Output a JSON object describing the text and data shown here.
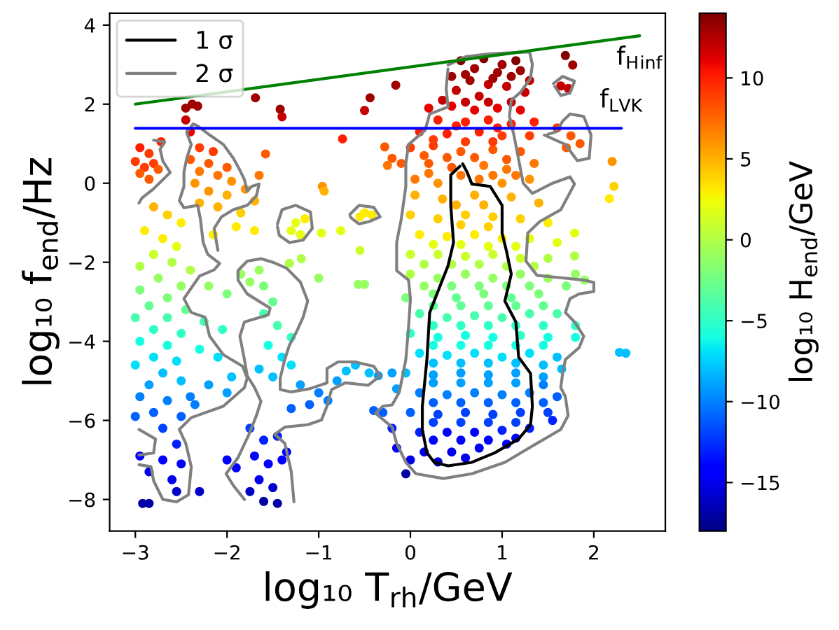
{
  "chart_data": {
    "type": "scatter",
    "xlabel": "log₁₀ T$_{rh}$/GeV",
    "ylabel": "log₁₀ f$_{end}$/Hz",
    "clabel": "log₁₀ H$_{end}$/GeV",
    "xlim": [
      -3.28,
      2.78
    ],
    "ylim": [
      -8.8,
      4.3
    ],
    "xticks": [
      -3,
      -2,
      -1,
      0,
      1,
      2
    ],
    "yticks": [
      -8,
      -6,
      -4,
      -2,
      0,
      2,
      4
    ],
    "clim": [
      -18,
      14
    ],
    "cticks": [
      -15,
      -10,
      -5,
      0,
      5,
      10
    ],
    "legend": "top left",
    "series": [
      {
        "marker": "circle",
        "x": [
          0.55,
          0.8,
          1.0,
          1.15,
          0.7,
          0.95,
          1.2,
          0.45,
          0.65,
          1.3,
          0.85,
          1.05,
          0.5,
          1.25,
          0.75,
          -0.16,
          1.69,
          1.77,
          1.64,
          1.72,
          0.2,
          0.45,
          0.7,
          0.95,
          1.2,
          0.3,
          0.6,
          0.85,
          1.1,
          1.35,
          0.1,
          0.4,
          0.75,
          1.0,
          1.3,
          1.6,
          1.75,
          1.85,
          1.7,
          0.0,
          0.25,
          0.55,
          0.9,
          1.2,
          -0.1,
          0.2,
          0.45,
          0.8,
          1.05,
          1.35,
          0.05,
          0.3,
          0.75,
          1.0,
          1.3,
          -0.28,
          -0.2,
          -0.25,
          2.2,
          2.22,
          2.17,
          0.05,
          0.35,
          0.7,
          1.1,
          1.4,
          0.0,
          0.3,
          0.6,
          0.9,
          1.2,
          1.5,
          0.1,
          0.4,
          0.7,
          1.0,
          1.3,
          1.6,
          0.0,
          0.3,
          0.6,
          0.9,
          1.2,
          1.5,
          1.79,
          1.79,
          0.0,
          0.3,
          0.6,
          0.9,
          1.2,
          1.5,
          1.8,
          -0.05,
          0.25,
          0.5,
          0.8,
          1.1,
          1.4,
          1.7,
          1.9,
          0.1,
          0.4,
          0.7,
          1.0,
          1.3,
          1.6,
          1.8,
          0.0,
          0.3,
          0.6,
          0.9,
          1.2,
          1.5,
          1.8,
          0.1,
          0.4,
          0.7,
          1.0,
          1.3,
          1.6,
          -0.05,
          0.25,
          0.55,
          0.85,
          1.15,
          1.45,
          1.65,
          -0.15,
          0.1,
          0.4,
          0.7,
          1.0,
          1.3,
          1.6,
          -0.3,
          0.0,
          0.3,
          0.6,
          0.9,
          1.2,
          1.5,
          2.28,
          2.35,
          -0.2,
          0.1,
          0.4,
          0.7,
          1.0,
          1.3,
          1.55,
          -0.15,
          0.15,
          0.45,
          0.75,
          1.05,
          0.0,
          0.3,
          0.6,
          -0.05,
          -0.35,
          -0.2,
          -1.2,
          -1.0,
          -0.8,
          -0.6,
          -0.45,
          -0.4,
          -1.1,
          -0.9,
          -1.3,
          -0.7,
          -2.95,
          -2.85,
          -3.0,
          -2.9,
          -2.8,
          -2.95,
          -2.85,
          -2.75,
          -2.72,
          -2.8,
          -2.65,
          -2.5,
          -2.9,
          -2.7,
          -2.55,
          -2.8,
          -2.6,
          -2.95,
          -2.4,
          -2.75,
          -2.5,
          -2.95,
          -2.65,
          -2.85,
          -2.45,
          -2.65,
          -3.0,
          -2.8,
          -2.5,
          -2.95,
          -2.65,
          -2.8,
          -2.55,
          -3.0,
          -2.7,
          -2.85,
          -2.5,
          -2.95,
          -2.65,
          -2.4,
          -2.8,
          -3.0,
          -2.5,
          -2.7,
          -2.55,
          -2.95,
          -2.7,
          -2.5,
          -2.85,
          -2.6,
          -2.55,
          -2.3,
          -2.92,
          -2.85,
          -2.3,
          -2.15,
          -2.4,
          -2.2,
          -2.0,
          -2.3,
          -2.1,
          -1.95,
          -2.35,
          -2.2,
          -2.0,
          -1.8,
          -1.7,
          -2.3,
          -2.1,
          -1.85,
          -1.9,
          -2.15,
          -1.7,
          -2.2,
          -2.0,
          -2.25,
          -2.05,
          -2.3,
          -2.1,
          -1.95,
          -2.2,
          -2.0,
          -2.35,
          -2.45,
          -2.38,
          -2.32,
          -2.45,
          -2.4,
          -1.69,
          -1.42,
          -1.4,
          -0.74,
          -0.44,
          -0.5,
          -1.58,
          -1.65,
          -0.96,
          -0.94,
          -1.85,
          -1.65,
          -1.6,
          -1.75,
          -1.5,
          -1.6,
          -1.45,
          -1.3,
          -1.55,
          -1.4,
          -1.65,
          -1.5,
          -1.3,
          -1.0,
          -0.57,
          -0.5,
          -1.75,
          -1.6,
          -1.45,
          -1.7,
          -1.55,
          -1.4,
          -1.9,
          -1.65,
          -1.5,
          -1.75,
          -1.45,
          -1.6,
          -1.35,
          -2.0,
          -1.25,
          -1.3,
          -1.15,
          -1.2,
          -0.5,
          -0.42,
          -0.55,
          -0.97,
          -0.76,
          -0.55,
          -1.32,
          -1.19,
          0.5,
          0.8,
          0.55,
          0.85,
          0.55,
          0.85,
          0.25,
          1.15,
          0.45,
          0.75,
          1.05,
          0.15,
          1.35,
          0.45,
          0.75,
          1.05,
          0.15,
          1.3,
          0.25,
          0.55,
          0.85,
          1.15,
          1.45,
          0.25,
          0.55,
          0.85,
          1.15,
          1.45,
          0.25,
          0.55,
          0.85,
          1.15,
          1.45,
          0.25,
          0.55,
          0.85,
          1.15,
          1.45,
          0.25,
          0.55,
          0.85,
          1.15,
          1.45,
          0.25,
          0.55,
          0.85,
          1.15,
          1.45,
          0.25,
          0.55,
          0.85,
          1.15,
          0.25,
          0.55,
          0.85,
          1.15,
          0.6,
          0.9,
          1.1,
          0.6,
          0.85,
          1.1,
          0.35,
          0.5,
          0.95,
          0.25,
          0.6,
          0.9,
          0.15,
          0.4,
          0.7,
          1.05,
          0.2,
          0.55,
          0.9,
          1.15
        ],
        "values": [
          3.1,
          3.15,
          3.0,
          3.1,
          2.9,
          2.8,
          2.85,
          2.7,
          2.6,
          2.6,
          2.5,
          2.45,
          2.35,
          2.3,
          2.2,
          2.48,
          3.23,
          2.99,
          2.46,
          2.4,
          1.9,
          1.95,
          1.85,
          1.9,
          1.85,
          1.6,
          1.55,
          1.6,
          1.5,
          1.55,
          1.3,
          1.25,
          1.3,
          1.2,
          1.2,
          1.4,
          1.2,
          1.0,
          0.9,
          0.9,
          0.95,
          0.8,
          0.85,
          0.8,
          0.5,
          0.5,
          0.4,
          0.45,
          0.35,
          0.5,
          0.1,
          0.0,
          0.1,
          0.0,
          0.1,
          0.92,
          0.63,
          0.45,
          0.55,
          -0.08,
          -0.39,
          -0.3,
          -0.4,
          -0.3,
          -0.35,
          -0.5,
          -0.8,
          -0.9,
          -0.8,
          -0.85,
          -0.9,
          -1.0,
          -1.3,
          -1.35,
          -1.3,
          -1.4,
          -1.4,
          -1.5,
          -1.8,
          -1.8,
          -1.85,
          -1.8,
          -1.9,
          -1.9,
          -1.26,
          -1.84,
          -2.3,
          -2.4,
          -2.3,
          -2.4,
          -2.3,
          -2.4,
          -2.3,
          -2.9,
          -2.8,
          -2.9,
          -2.8,
          -2.9,
          -2.8,
          -2.6,
          -2.45,
          -3.3,
          -3.4,
          -3.35,
          -3.4,
          -3.3,
          -3.3,
          -3.6,
          -3.8,
          -3.9,
          -3.85,
          -3.9,
          -3.85,
          -3.9,
          -3.9,
          -4.3,
          -4.35,
          -4.3,
          -4.4,
          -4.3,
          -4.4,
          -4.8,
          -4.85,
          -4.8,
          -4.85,
          -4.8,
          -4.9,
          -4.7,
          -5.2,
          -5.3,
          -5.35,
          -5.3,
          -5.35,
          -5.3,
          -5.4,
          -5.8,
          -5.8,
          -5.85,
          -5.8,
          -5.85,
          -5.8,
          -5.8,
          -4.28,
          -4.3,
          -6.2,
          -6.3,
          -6.3,
          -6.3,
          -6.25,
          -6.2,
          -6.0,
          -6.7,
          -6.8,
          -6.8,
          -6.7,
          -6.6,
          -7.0,
          -7.05,
          -6.95,
          -7.35,
          -4.87,
          -4.8,
          -5.1,
          -5.3,
          -5.0,
          -4.6,
          -4.8,
          -5.75,
          -5.6,
          -5.5,
          -5.7,
          -4.75,
          0.9,
          0.75,
          0.55,
          0.4,
          0.5,
          0.25,
          0.1,
          0.35,
          1.05,
          -0.6,
          -0.8,
          -1.0,
          -1.2,
          -1.4,
          -1.6,
          -1.8,
          -2.0,
          -2.1,
          -2.2,
          -2.4,
          -2.6,
          -2.7,
          -2.9,
          -3.1,
          -3.2,
          -3.4,
          -3.4,
          -3.7,
          -3.8,
          -4.0,
          -4.1,
          -4.4,
          -4.5,
          -4.6,
          -4.8,
          -5.1,
          -5.0,
          -5.4,
          -5.5,
          -5.4,
          -5.8,
          -5.9,
          -5.9,
          -6.2,
          -6.6,
          -6.9,
          -7.0,
          -7.1,
          -7.3,
          -7.5,
          -7.8,
          -7.8,
          -8.1,
          -8.1,
          0.9,
          0.8,
          0.6,
          0.5,
          0.4,
          0.3,
          0.2,
          0.05,
          0.0,
          -0.2,
          -0.3,
          -0.15,
          -0.45,
          -0.5,
          -0.6,
          -0.75,
          -1.1,
          -1.3,
          -1.2,
          -2.6,
          -2.8,
          -3.5,
          -3.7,
          -4.2,
          -4.4,
          -4.9,
          -5.1,
          -5.3,
          -5.6,
          1.9,
          2.0,
          1.95,
          1.6,
          1.3,
          2.16,
          1.87,
          1.68,
          1.12,
          2.16,
          1.84,
          0.74,
          0.2,
          -0.08,
          -0.2,
          -2.3,
          -2.2,
          -2.6,
          -2.5,
          -3.0,
          -3.3,
          -3.6,
          -3.9,
          -4.1,
          -4.4,
          -4.7,
          -4.9,
          -4.6,
          -2.4,
          -2.56,
          -2.56,
          -6.2,
          -6.5,
          -6.4,
          -6.9,
          -7.1,
          -7.0,
          -7.2,
          -7.5,
          -7.7,
          -7.8,
          -8.1,
          -8.05,
          -6.8,
          -7.0,
          -1.0,
          -1.2,
          -0.9,
          -1.3,
          -0.75,
          -0.8,
          -0.85,
          -1.26,
          -1.2,
          -1.7,
          -2.03,
          -1.91,
          -0.55,
          -0.55,
          -1.05,
          -1.1,
          -1.55,
          -1.6,
          -1.55,
          -1.6,
          -2.05,
          -2.05,
          -2.1,
          -2.05,
          -2.1,
          -2.6,
          -2.6,
          -2.6,
          -2.6,
          -2.6,
          -3.1,
          -3.1,
          -3.1,
          -3.1,
          -3.1,
          -3.6,
          -3.6,
          -3.6,
          -3.6,
          -3.6,
          -4.1,
          -4.1,
          -4.1,
          -4.1,
          -4.1,
          -4.55,
          -4.55,
          -4.55,
          -4.55,
          -4.6,
          -5.05,
          -5.05,
          -5.05,
          -5.05,
          -5.1,
          -5.55,
          -5.55,
          -5.55,
          -5.55,
          -5.55,
          -6.05,
          -6.05,
          -6.05,
          -6.05,
          -6.5,
          -6.5,
          -6.5,
          -6.45,
          2.75,
          2.65,
          2.7,
          2.05,
          2.05,
          2.05,
          2.1,
          1.45,
          1.4,
          1.1,
          1.05,
          1.05,
          0.7,
          0.65,
          0.65,
          0.6,
          0.25,
          0.2,
          0.2,
          0.2
        ],
        "colors": [
          "#800000",
          "#800000",
          "#9f0000",
          "#800000",
          "#9f0000",
          "#9f0000",
          "#9f0000",
          "#9f0000",
          "#9f0000",
          "#c40000",
          "#c40000",
          "#c40000",
          "#c40000",
          "#c40000",
          "#c40000",
          "#9f0000",
          "#800000",
          "#9f0000",
          "#c40000",
          "#c40000",
          "#e80000",
          "#e80000",
          "#e80000",
          "#e80000",
          "#e80000",
          "#ff1e00",
          "#ff1e00",
          "#ff1e00",
          "#ff1e00",
          "#ff1e00",
          "#ff1e00",
          "#ff1e00",
          "#ff1e00",
          "#ff3b00",
          "#ff3b00",
          "#ff3b00",
          "#ff5900",
          "#ff5900",
          "#ff5900",
          "#ff3b00",
          "#ff3b00",
          "#ff5900",
          "#ff5900",
          "#ff5900",
          "#ff5900",
          "#ff5900",
          "#ff5900",
          "#ff7700",
          "#ff7700",
          "#ff7700",
          "#ff7700",
          "#ff9400",
          "#ff7700",
          "#ff9400",
          "#ff9400",
          "#ff5900",
          "#ff5900",
          "#ff7700",
          "#ff9400",
          "#ffd000",
          "#feed00",
          "#ffb200",
          "#ffb200",
          "#ffb200",
          "#ffb200",
          "#ffb200",
          "#ffd000",
          "#ffd000",
          "#ffd000",
          "#ffd000",
          "#ffd000",
          "#feed00",
          "#feed00",
          "#feed00",
          "#feed00",
          "#feed00",
          "#e4ff12",
          "#e4ff12",
          "#caff2c",
          "#caff2c",
          "#caff2c",
          "#caff2c",
          "#caff2c",
          "#b1ff46",
          "#e4ff12",
          "#b1ff46",
          "#b1ff46",
          "#97ff60",
          "#97ff60",
          "#97ff60",
          "#97ff60",
          "#97ff60",
          "#97ff60",
          "#7dff7a",
          "#7dff7a",
          "#63ff94",
          "#7dff7a",
          "#63ff94",
          "#7dff7a",
          "#7dff7a",
          "#97ff60",
          "#49ffad",
          "#49ffad",
          "#49ffad",
          "#49ffad",
          "#49ffad",
          "#49ffad",
          "#30ffc7",
          "#30ffc7",
          "#16ffe1",
          "#16ffe1",
          "#16ffe1",
          "#30ffc7",
          "#16ffe1",
          "#16ffe1",
          "#00e0fb",
          "#00e0fb",
          "#00e0fb",
          "#00e0fb",
          "#00e0fb",
          "#00c0ff",
          "#00c0ff",
          "#00a0ff",
          "#00a0ff",
          "#00a0ff",
          "#00a0ff",
          "#00a0ff",
          "#00c0ff",
          "#00a0ff",
          "#0080ff",
          "#0080ff",
          "#0080ff",
          "#0080ff",
          "#0080ff",
          "#0060ff",
          "#0060ff",
          "#0060ff",
          "#0040ff",
          "#0040ff",
          "#0040ff",
          "#0040ff",
          "#0040ff",
          "#00c0ff",
          "#00c0ff",
          "#0020ff",
          "#0020ff",
          "#0000ff",
          "#0000ff",
          "#0020ff",
          "#0020ff",
          "#0020ff",
          "#0000ff",
          "#0000ed",
          "#0000ed",
          "#0000ed",
          "#0000ff",
          "#0000ed",
          "#0000c8",
          "#0000ed",
          "#0000a4",
          "#00a0ff",
          "#00a0ff",
          "#00a0ff",
          "#0080ff",
          "#00a0ff",
          "#00c0ff",
          "#00c0ff",
          "#0060ff",
          "#0060ff",
          "#0080ff",
          "#0060ff",
          "#00c0ff",
          "#ff1e00",
          "#ff3b00",
          "#ff3b00",
          "#ff3b00",
          "#ff3b00",
          "#ff5900",
          "#ff5900",
          "#ff5900",
          "#ff1e00",
          "#ffb200",
          "#ffd000",
          "#feed00",
          "#feed00",
          "#feed00",
          "#e4ff12",
          "#caff2c",
          "#b1ff46",
          "#b1ff46",
          "#b1ff46",
          "#97ff60",
          "#97ff60",
          "#7dff7a",
          "#7dff7a",
          "#63ff94",
          "#63ff94",
          "#49ffad",
          "#49ffad",
          "#30ffc7",
          "#30ffc7",
          "#16ffe1",
          "#16ffe1",
          "#00e0fb",
          "#00e0fb",
          "#00e0fb",
          "#00c0ff",
          "#00a0ff",
          "#00c0ff",
          "#0080ff",
          "#0080ff",
          "#0080ff",
          "#0060ff",
          "#0060ff",
          "#0060ff",
          "#0040ff",
          "#0020ff",
          "#0000ff",
          "#0000ff",
          "#0000ff",
          "#0000ed",
          "#0000ed",
          "#0000c8",
          "#0000c8",
          "#0000a4",
          "#0000a4",
          "#ff3b00",
          "#ff3b00",
          "#ff5900",
          "#ff5900",
          "#ff5900",
          "#ff7700",
          "#ff7700",
          "#ff9400",
          "#ff9400",
          "#ff9400",
          "#ffb200",
          "#ff9400",
          "#ffb200",
          "#ffb200",
          "#ffb200",
          "#ffd000",
          "#feed00",
          "#feed00",
          "#feed00",
          "#97ff60",
          "#7dff7a",
          "#49ffad",
          "#30ffc7",
          "#16ffe1",
          "#00e0fb",
          "#00c0ff",
          "#00a0ff",
          "#00a0ff",
          "#0080ff",
          "#9f0000",
          "#9f0000",
          "#9f0000",
          "#c40000",
          "#e80000",
          "#9f0000",
          "#9f0000",
          "#c40000",
          "#ff1e00",
          "#9f0000",
          "#c40000",
          "#ff5900",
          "#ff7700",
          "#ff9400",
          "#ffb200",
          "#97ff60",
          "#97ff60",
          "#7dff7a",
          "#97ff60",
          "#63ff94",
          "#49ffad",
          "#49ffad",
          "#30ffc7",
          "#16ffe1",
          "#00e0fb",
          "#00c0ff",
          "#00c0ff",
          "#00e0fb",
          "#97ff60",
          "#97ff60",
          "#97ff60",
          "#0040ff",
          "#0020ff",
          "#0020ff",
          "#0000ff",
          "#0000ff",
          "#0000ff",
          "#0000ff",
          "#0000ed",
          "#0000c8",
          "#0000c8",
          "#0000a4",
          "#0000a4",
          "#0000ff",
          "#0000ff",
          "#e4ff12",
          "#e4ff12",
          "#feed00",
          "#e4ff12",
          "#feed00",
          "#feed00",
          "#feed00",
          "#e4ff12",
          "#e4ff12",
          "#caff2c",
          "#b1ff46",
          "#b1ff46",
          "#ffb200",
          "#ffb200",
          "#ffd000",
          "#ffd000",
          "#e4ff12",
          "#e4ff12",
          "#e4ff12",
          "#e4ff12",
          "#b1ff46",
          "#b1ff46",
          "#b1ff46",
          "#b1ff46",
          "#b1ff46",
          "#7dff7a",
          "#7dff7a",
          "#7dff7a",
          "#97ff60",
          "#7dff7a",
          "#63ff94",
          "#63ff94",
          "#63ff94",
          "#63ff94",
          "#63ff94",
          "#30ffc7",
          "#30ffc7",
          "#30ffc7",
          "#30ffc7",
          "#30ffc7",
          "#16ffe1",
          "#16ffe1",
          "#16ffe1",
          "#16ffe1",
          "#16ffe1",
          "#00c0ff",
          "#00c0ff",
          "#00c0ff",
          "#00c0ff",
          "#00c0ff",
          "#00a0ff",
          "#00a0ff",
          "#00a0ff",
          "#00a0ff",
          "#0080ff",
          "#0060ff",
          "#0060ff",
          "#0060ff",
          "#0060ff",
          "#0060ff",
          "#0040ff",
          "#0040ff",
          "#0040ff",
          "#0040ff",
          "#0000ff",
          "#0000ff",
          "#0000ff",
          "#0000ff",
          "#9f0000",
          "#9f0000",
          "#9f0000",
          "#c40000",
          "#c40000",
          "#c40000",
          "#c40000",
          "#ff1e00",
          "#ff1e00",
          "#ff3b00",
          "#ff3b00",
          "#ff3b00",
          "#ff5900",
          "#ff5900",
          "#ff5900",
          "#ff5900",
          "#ff7700",
          "#ff7700",
          "#ff7700",
          "#ff7700"
        ]
      },
      {
        "type": "line",
        "name": "1 σ",
        "color": "#000000",
        "x": [
          0.57,
          0.62,
          0.67,
          0.87,
          1.0,
          1.0,
          1.05,
          1.1,
          1.03,
          1.15,
          1.18,
          1.31,
          1.33,
          1.31,
          1.18,
          0.92,
          0.67,
          0.41,
          0.26,
          0.18,
          0.13,
          0.13,
          0.18,
          0.21,
          0.31,
          0.41,
          0.47,
          0.44,
          0.44,
          0.54
        ],
        "values": [
          0.49,
          0.27,
          -0.02,
          -0.08,
          -0.56,
          -1.26,
          -1.74,
          -2.3,
          -2.98,
          -3.51,
          -4.4,
          -4.81,
          -5.64,
          -6.11,
          -6.47,
          -6.82,
          -7.06,
          -7.15,
          -7.06,
          -6.82,
          -6.23,
          -5.64,
          -4.46,
          -3.27,
          -2.68,
          -2.09,
          -1.5,
          -0.56,
          0.21,
          0.43
        ]
      },
      {
        "type": "line",
        "name": "2 σ",
        "color": "#808080",
        "x": [
          0.41,
          0.6,
          0.85,
          1.1,
          1.3,
          1.33,
          1.31,
          1.2,
          1.1,
          1.08,
          1.13,
          1.18,
          1.23,
          1.33,
          1.54,
          1.74,
          1.79,
          1.64,
          1.41,
          1.28,
          1.26,
          1.38,
          1.64,
          1.89,
          2.0,
          2.0,
          1.84,
          1.74,
          1.69,
          1.79,
          1.89,
          1.84,
          1.69,
          1.66,
          1.64,
          1.69,
          1.72,
          1.64,
          1.38,
          1.03,
          0.67,
          0.36,
          0.06,
          -0.05,
          -0.15,
          -0.2,
          -0.38,
          -0.3,
          -0.2,
          -0.12,
          -0.05,
          -0.02,
          0.0,
          -0.02,
          -0.15,
          -0.15,
          -0.1,
          -0.05,
          -0.05,
          -0.02,
          0.16,
          0.21,
          0.41,
          0.39,
          0.41,
          null,
          1.46,
          1.69,
          1.82,
          1.95,
          1.97,
          1.89,
          1.74,
          1.66,
          1.59,
          1.5,
          null,
          1.56,
          1.66,
          1.79,
          1.74,
          1.64,
          1.575,
          null,
          -2.1,
          -2.14,
          -2.06,
          -1.93,
          -1.78,
          -1.68,
          -1.65,
          -1.73,
          -1.78,
          -1.81,
          -1.86,
          -1.93,
          -2.04,
          -2.19,
          -2.32,
          -2.37,
          -2.44,
          -2.39,
          -2.44,
          -2.47,
          -2.47,
          -2.52,
          -2.47,
          -2.32,
          -2.29,
          -2.26,
          -2.21,
          -2.08,
          -2.14,
          -2.3,
          -2.47,
          -2.39,
          -2.24,
          -2.19,
          -2.04,
          -1.83,
          -1.78,
          -1.81,
          -2.04,
          -2.39,
          -2.52,
          -2.45,
          -2.39,
          -2.42,
          -2.55,
          -2.7,
          -2.8,
          -2.83,
          -2.96,
          null,
          -2.8,
          -2.68,
          -2.73,
          -2.7,
          -2.62,
          -2.7,
          -2.8,
          -2.93,
          -2.96,
          null,
          -2.96,
          -2.78,
          -2.8,
          -2.96,
          null,
          -1.81,
          -1.93,
          -2.01,
          -1.88,
          -1.76,
          -1.68,
          -1.63,
          -1.7,
          -1.78,
          -1.81,
          -1.86,
          -1.81,
          -1.55,
          -1.53,
          -1.78,
          -1.88,
          -1.88,
          -1.78,
          -1.63,
          -1.5,
          -1.35,
          -1.2,
          -1.12,
          -1.17,
          -1.24,
          -1.32,
          -1.37,
          -1.42,
          -1.42,
          -1.3,
          -1.1,
          -0.91,
          -0.91,
          -0.79,
          -0.61,
          -0.4,
          -0.33,
          -0.46,
          -0.71,
          -0.86,
          -0.91,
          -0.97,
          -1.12,
          -1.37,
          -1.48,
          -1.37,
          -1.3,
          -1.27,
          null,
          -1.45,
          -1.4,
          -1.25,
          -1.09,
          -1.07,
          -1.17,
          -1.32,
          -1.43,
          -1.45,
          null,
          -0.66,
          -0.56,
          -0.4,
          -0.33,
          -0.45,
          -0.56,
          -0.63,
          -0.655
        ],
        "values": [
          2.99,
          3.2,
          3.27,
          3.3,
          3.32,
          3.0,
          2.65,
          2.3,
          2.1,
          1.7,
          1.2,
          0.6,
          0.0,
          -0.26,
          -0.01,
          0.16,
          -0.02,
          -0.67,
          -0.97,
          -1.26,
          -1.97,
          -2.33,
          -2.39,
          -2.45,
          -2.51,
          -2.74,
          -2.8,
          -2.92,
          -3.27,
          -3.51,
          -3.87,
          -4.16,
          -4.46,
          -4.81,
          -5.17,
          -5.4,
          -5.88,
          -6.23,
          -6.58,
          -7.06,
          -7.35,
          -7.47,
          -7.35,
          -7.06,
          -6.58,
          -6.17,
          -5.82,
          -5.64,
          -5.61,
          -5.28,
          -4.46,
          -3.63,
          -2.92,
          -2.45,
          -2.21,
          -1.5,
          -0.91,
          -0.08,
          0.51,
          0.98,
          1.34,
          1.75,
          1.93,
          2.4,
          2.89,
          null,
          1.22,
          0.98,
          0.57,
          0.63,
          1.22,
          1.69,
          1.75,
          1.57,
          1.3,
          1.24,
          null,
          2.52,
          2.7,
          2.58,
          2.28,
          2.22,
          2.45,
          null,
          -1.7,
          -1.14,
          -0.85,
          -0.67,
          -0.56,
          -0.32,
          -0.02,
          -0.08,
          -0.2,
          0.09,
          0.33,
          0.63,
          0.98,
          1.22,
          1.45,
          1.5,
          1.28,
          0.98,
          0.63,
          0.27,
          -0.08,
          -0.44,
          -0.62,
          -0.56,
          -0.91,
          -1.5,
          -1.8,
          -2.03,
          -2.19,
          -2.35,
          -2.92,
          -3.27,
          -3.39,
          -3.87,
          -4.34,
          -4.63,
          -4.93,
          -5.17,
          -5.64,
          -5.93,
          -6.23,
          -6.58,
          -7.17,
          -7.88,
          -8.06,
          -8.0,
          -7.53,
          -7.17,
          -7.12,
          null,
          1.09,
          1.04,
          0.86,
          0.56,
          0.27,
          0.09,
          -0.14,
          -0.38,
          -0.5,
          null,
          -6.23,
          -6.47,
          -6.82,
          -6.88,
          null,
          -8.0,
          -7.65,
          -7.35,
          -6.94,
          -6.35,
          -5.88,
          -5.52,
          -5.17,
          -4.87,
          -4.46,
          -3.87,
          -3.51,
          -3.33,
          -3.16,
          -2.8,
          -2.45,
          -2.21,
          -1.97,
          -1.91,
          -2.0,
          -2.15,
          -2.5,
          -2.98,
          -3.39,
          -3.75,
          -4.1,
          -4.46,
          -4.93,
          -5.22,
          -5.28,
          -5.2,
          -5.05,
          -4.69,
          -4.52,
          -4.52,
          -4.63,
          -4.87,
          -5.11,
          -5.05,
          -5.22,
          -5.64,
          -5.99,
          -6.11,
          -6.17,
          -6.35,
          -6.58,
          -7.29,
          -8.06,
          null,
          -1.03,
          -0.67,
          -0.56,
          -0.73,
          -1.14,
          -1.44,
          -1.5,
          -1.32,
          -1.1,
          null,
          -0.79,
          -0.56,
          -0.61,
          -0.85,
          -0.97,
          -1.03,
          -0.91,
          -0.85
        ]
      },
      {
        "type": "line",
        "color": "#008000",
        "x": [
          -3,
          2.5
        ],
        "values": [
          2.0,
          3.73
        ]
      },
      {
        "type": "line",
        "color": "#0000ff",
        "x": [
          -3,
          2.3
        ],
        "values": [
          1.39,
          1.39
        ]
      }
    ],
    "annotations": [
      {
        "text": "f$_{H}$$_{inf}$",
        "x": 2.5,
        "y": 3.73
      },
      {
        "text": "f$_{LVK}$",
        "x": 2.3,
        "y": 1.39
      }
    ]
  }
}
